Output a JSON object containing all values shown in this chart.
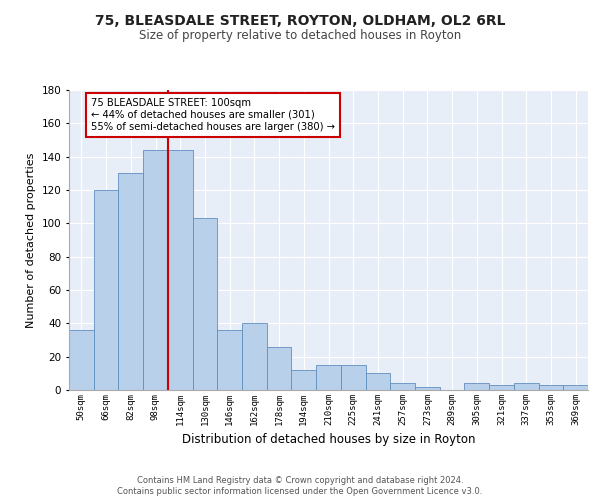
{
  "title1": "75, BLEASDALE STREET, ROYTON, OLDHAM, OL2 6RL",
  "title2": "Size of property relative to detached houses in Royton",
  "xlabel": "Distribution of detached houses by size in Royton",
  "ylabel": "Number of detached properties",
  "categories": [
    "50sqm",
    "66sqm",
    "82sqm",
    "98sqm",
    "114sqm",
    "130sqm",
    "146sqm",
    "162sqm",
    "178sqm",
    "194sqm",
    "210sqm",
    "225sqm",
    "241sqm",
    "257sqm",
    "273sqm",
    "289sqm",
    "305sqm",
    "321sqm",
    "337sqm",
    "353sqm",
    "369sqm"
  ],
  "values": [
    36,
    120,
    130,
    144,
    144,
    103,
    36,
    40,
    26,
    12,
    15,
    15,
    10,
    4,
    2,
    0,
    4,
    3,
    4,
    3,
    3
  ],
  "bar_color": "#b8d0ea",
  "bar_edge_color": "#6090c0",
  "bar_width": 1.0,
  "vline_x": 3.5,
  "vline_color": "#cc0000",
  "annotation_text": "75 BLEASDALE STREET: 100sqm\n← 44% of detached houses are smaller (301)\n55% of semi-detached houses are larger (380) →",
  "annotation_box_color": "white",
  "annotation_box_edge": "#cc0000",
  "footer1": "Contains HM Land Registry data © Crown copyright and database right 2024.",
  "footer2": "Contains public sector information licensed under the Open Government Licence v3.0.",
  "ylim": [
    0,
    180
  ],
  "yticks": [
    0,
    20,
    40,
    60,
    80,
    100,
    120,
    140,
    160,
    180
  ],
  "bg_color": "#e8eef8",
  "fig_bg": "#ffffff"
}
